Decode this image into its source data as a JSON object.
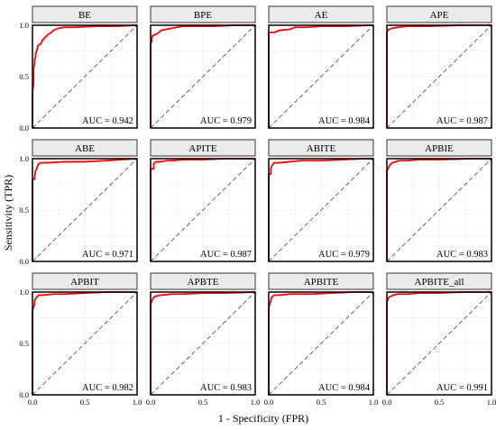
{
  "chart_data": {
    "type": "line",
    "xlabel": "1 - Specificity (FPR)",
    "ylabel": "Sensitivity (TPR)",
    "xlim": [
      0,
      1
    ],
    "ylim": [
      0,
      1
    ],
    "x_ticks": [
      "0.0",
      "0.5",
      "1.0"
    ],
    "y_ticks": [
      "0.0",
      "0.5",
      "1.0"
    ],
    "grid": true,
    "line_color": "#ff0000",
    "diagonal_color": "#555555",
    "panels": [
      {
        "title": "BE",
        "auc_label": "AUC = 0.942",
        "x": [
          0,
          0,
          0.01,
          0.01,
          0.02,
          0.02,
          0.03,
          0.03,
          0.05,
          0.05,
          0.08,
          0.1,
          0.12,
          0.15,
          0.18,
          0.2,
          0.22,
          0.25,
          0.3,
          0.4,
          0.6,
          0.8,
          1.0
        ],
        "y": [
          0,
          0.35,
          0.42,
          0.58,
          0.62,
          0.66,
          0.69,
          0.72,
          0.78,
          0.8,
          0.82,
          0.86,
          0.88,
          0.91,
          0.93,
          0.95,
          0.96,
          0.97,
          0.98,
          0.98,
          0.99,
          0.99,
          1.0
        ]
      },
      {
        "title": "BPE",
        "auc_label": "AUC = 0.979",
        "x": [
          0,
          0,
          0.01,
          0.01,
          0.02,
          0.02,
          0.05,
          0.08,
          0.1,
          0.15,
          0.2,
          0.25,
          0.3,
          0.45,
          0.6,
          0.8,
          1.0
        ],
        "y": [
          0,
          0.82,
          0.84,
          0.88,
          0.89,
          0.9,
          0.91,
          0.93,
          0.95,
          0.96,
          0.97,
          0.98,
          0.99,
          0.99,
          0.99,
          1.0,
          1.0
        ]
      },
      {
        "title": "AE",
        "auc_label": "AUC = 0.984",
        "x": [
          0,
          0,
          0.02,
          0.05,
          0.08,
          0.1,
          0.2,
          0.25,
          0.35,
          0.5,
          0.7,
          1.0
        ],
        "y": [
          0,
          0.93,
          0.93,
          0.93,
          0.94,
          0.95,
          0.96,
          0.98,
          0.98,
          0.99,
          0.99,
          1.0
        ]
      },
      {
        "title": "APE",
        "auc_label": "AUC = 0.987",
        "x": [
          0,
          0,
          0.01,
          0.02,
          0.05,
          0.1,
          0.2,
          0.4,
          0.7,
          1.0
        ],
        "y": [
          0,
          0.93,
          0.95,
          0.96,
          0.97,
          0.98,
          0.99,
          0.99,
          1.0,
          1.0
        ]
      },
      {
        "title": "ABE",
        "auc_label": "AUC = 0.971",
        "x": [
          0,
          0,
          0.02,
          0.02,
          0.03,
          0.04,
          0.05,
          0.06,
          0.08,
          0.15,
          0.3,
          0.5,
          0.7,
          0.85,
          1.0
        ],
        "y": [
          0,
          0.8,
          0.8,
          0.82,
          0.88,
          0.9,
          0.93,
          0.95,
          0.96,
          0.96,
          0.97,
          0.97,
          0.98,
          0.99,
          1.0
        ]
      },
      {
        "title": "APITE",
        "auc_label": "AUC = 0.987",
        "x": [
          0,
          0,
          0.01,
          0.03,
          0.03,
          0.05,
          0.1,
          0.15,
          0.2,
          0.3,
          0.5,
          0.7,
          1.0
        ],
        "y": [
          0,
          0.9,
          0.9,
          0.9,
          0.95,
          0.97,
          0.97,
          0.98,
          0.98,
          0.99,
          0.99,
          1.0,
          1.0
        ]
      },
      {
        "title": "ABITE",
        "auc_label": "AUC = 0.979",
        "x": [
          0,
          0,
          0.02,
          0.02,
          0.03,
          0.05,
          0.1,
          0.2,
          0.3,
          0.5,
          0.7,
          0.9,
          1.0
        ],
        "y": [
          0,
          0.85,
          0.85,
          0.9,
          0.93,
          0.96,
          0.96,
          0.97,
          0.98,
          0.98,
          0.99,
          1.0,
          1.0
        ]
      },
      {
        "title": "APBIE",
        "auc_label": "AUC = 0.983",
        "x": [
          0,
          0,
          0.01,
          0.02,
          0.03,
          0.05,
          0.08,
          0.12,
          0.2,
          0.3,
          0.5,
          0.8,
          1.0
        ],
        "y": [
          0,
          0.88,
          0.9,
          0.92,
          0.94,
          0.96,
          0.97,
          0.98,
          0.98,
          0.99,
          0.99,
          1.0,
          1.0
        ]
      },
      {
        "title": "APBIT",
        "auc_label": "AUC = 0.982",
        "x": [
          0,
          0,
          0.01,
          0.02,
          0.02,
          0.04,
          0.06,
          0.1,
          0.2,
          0.3,
          0.5,
          0.7,
          1.0
        ],
        "y": [
          0,
          0.82,
          0.85,
          0.88,
          0.92,
          0.95,
          0.97,
          0.97,
          0.98,
          0.98,
          0.99,
          1.0,
          1.0
        ]
      },
      {
        "title": "APBTE",
        "auc_label": "AUC = 0.983",
        "x": [
          0,
          0,
          0.01,
          0.02,
          0.03,
          0.05,
          0.1,
          0.2,
          0.3,
          0.5,
          0.7,
          1.0
        ],
        "y": [
          0,
          0.88,
          0.91,
          0.93,
          0.95,
          0.96,
          0.97,
          0.98,
          0.98,
          0.99,
          0.99,
          1.0
        ]
      },
      {
        "title": "APBITE",
        "auc_label": "AUC = 0.984",
        "x": [
          0,
          0,
          0.01,
          0.02,
          0.03,
          0.05,
          0.1,
          0.2,
          0.4,
          0.6,
          0.8,
          1.0
        ],
        "y": [
          0,
          0.85,
          0.88,
          0.92,
          0.95,
          0.97,
          0.97,
          0.98,
          0.98,
          0.99,
          1.0,
          1.0
        ]
      },
      {
        "title": "APBITE_all",
        "auc_label": "AUC = 0.991",
        "x": [
          0,
          0,
          0.01,
          0.02,
          0.04,
          0.06,
          0.1,
          0.2,
          0.3,
          0.5,
          0.7,
          1.0
        ],
        "y": [
          0,
          0.9,
          0.93,
          0.95,
          0.96,
          0.97,
          0.98,
          0.98,
          0.99,
          0.99,
          1.0,
          1.0
        ]
      }
    ]
  }
}
